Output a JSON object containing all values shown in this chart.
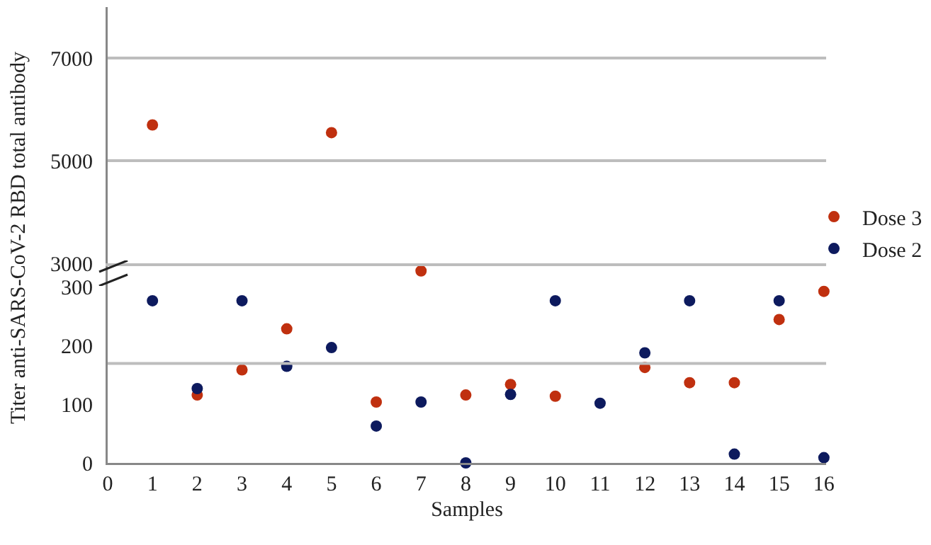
{
  "chart_data": [
    {
      "type": "scatter",
      "ylabel": "Titer anti-SARS-CoV-2 RBD total antibody",
      "xlim": [
        0,
        16.05
      ],
      "xticks": [
        0,
        1,
        2,
        3,
        4,
        5,
        6,
        7,
        8,
        9,
        10,
        11,
        12,
        13,
        14,
        15,
        16
      ],
      "ylim": [
        3000,
        8000
      ],
      "yticks": [
        3000,
        5000,
        7000
      ],
      "tick_labels": "y",
      "grid": "y",
      "legend": "right",
      "marker": "circle",
      "x": [
        1,
        5
      ],
      "series": [
        {
          "name": "Dose 3",
          "color": "#c0300f",
          "values": [
            5700,
            5550
          ]
        },
        {
          "name": "Dose 2",
          "color": "#0d1a5e",
          "values": [
            null,
            null
          ]
        }
      ]
    },
    {
      "type": "scatter",
      "xlabel": "Samples",
      "xlim": [
        0,
        16.05
      ],
      "xticks": [
        0,
        1,
        2,
        3,
        4,
        5,
        6,
        7,
        8,
        9,
        10,
        11,
        12,
        13,
        14,
        15,
        16
      ],
      "ylim": [
        0,
        341
      ],
      "yticks": [
        0,
        100,
        200,
        300
      ],
      "marker": "circle",
      "x": [
        1,
        2,
        3,
        4,
        5,
        6,
        7,
        8,
        9,
        10,
        11,
        12,
        13,
        14,
        15,
        16
      ],
      "ref_lines": [
        {
          "axis": "y",
          "value": 170,
          "color": "#bdbdbd"
        }
      ],
      "series": [
        {
          "color": "#c0300f",
          "values": [
            null,
            116,
            159,
            229,
            null,
            104,
            328,
            116,
            134,
            114,
            null,
            163,
            137,
            137,
            245,
            293
          ]
        },
        {
          "color": "#0d1a5e",
          "values": [
            277,
            127,
            277,
            165,
            197,
            63,
            104,
            0,
            117,
            277,
            102,
            188,
            277,
            15,
            277,
            9
          ]
        }
      ]
    }
  ]
}
